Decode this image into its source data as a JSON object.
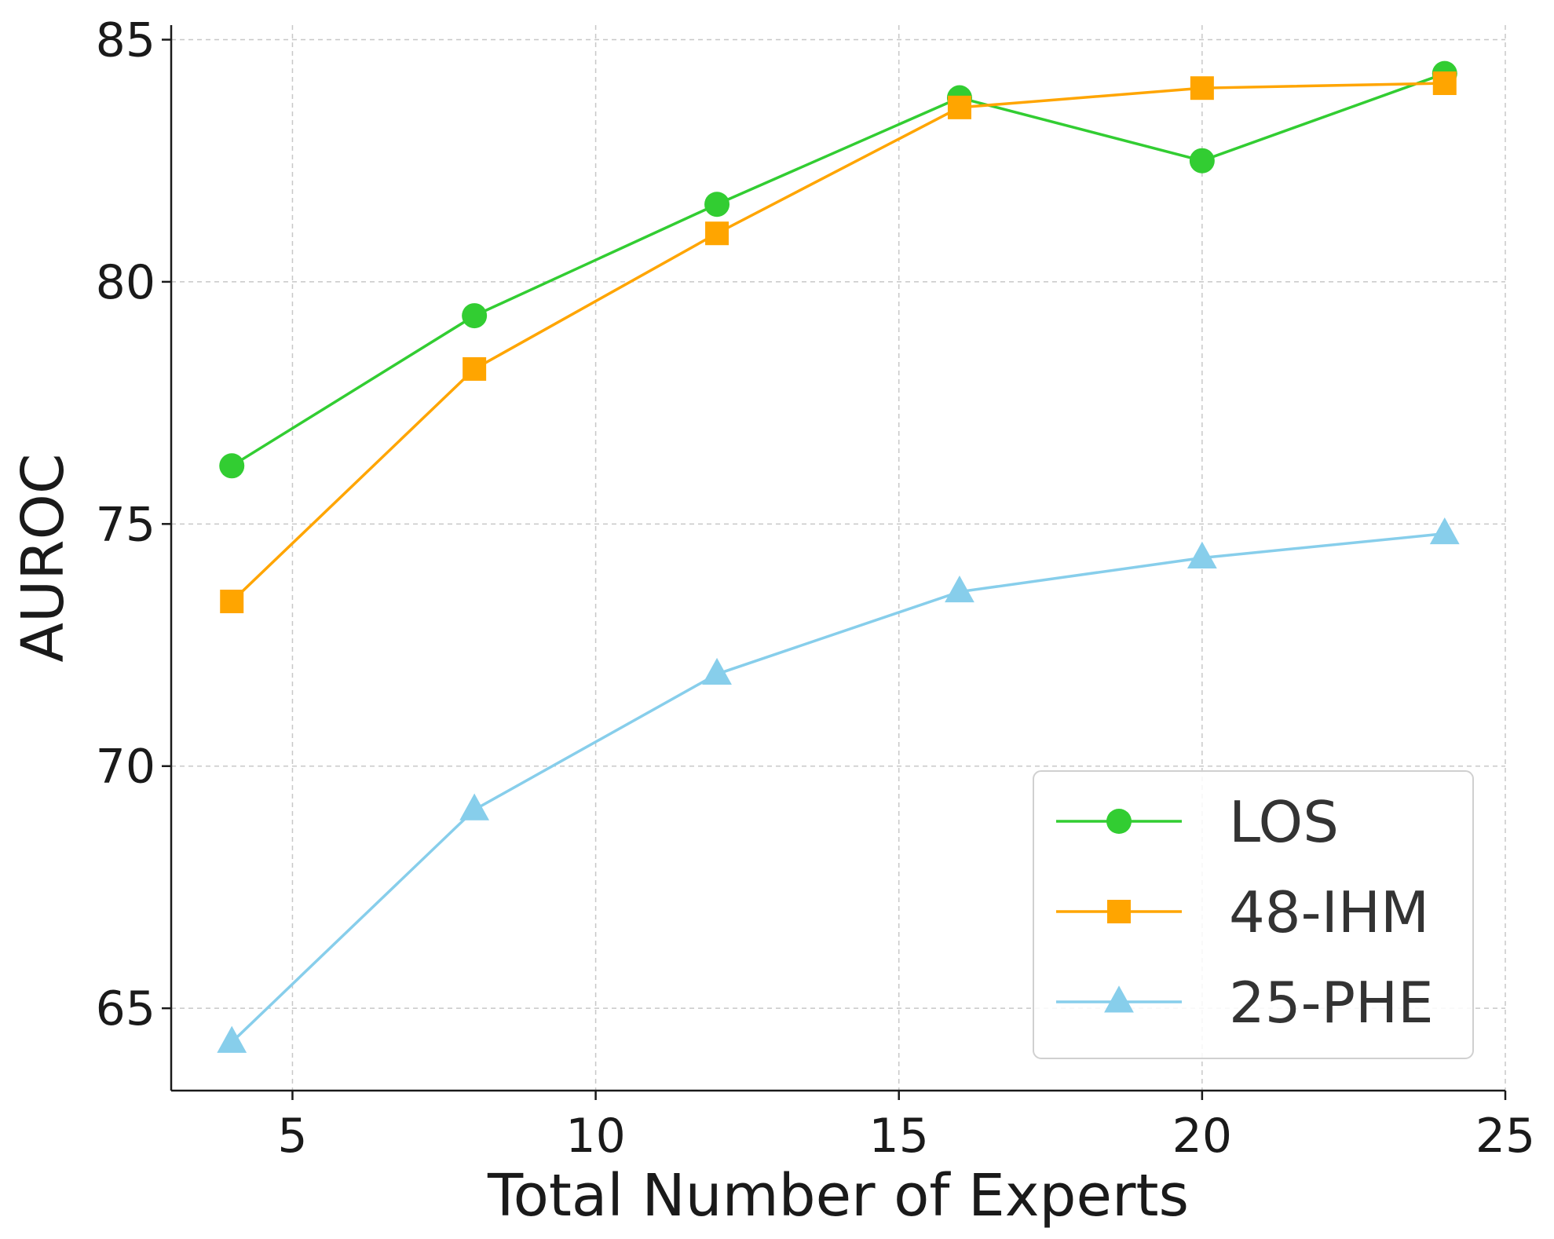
{
  "chart_data": {
    "type": "line",
    "title": "",
    "xlabel": "Total Number of Experts",
    "ylabel": "AUROC",
    "xlim": [
      3,
      25
    ],
    "ylim": [
      63.3,
      85.3
    ],
    "xticks": [
      5,
      10,
      15,
      20,
      25
    ],
    "yticks": [
      65,
      70,
      75,
      80,
      85
    ],
    "grid": true,
    "legend_position": "bottom-right",
    "x": [
      4,
      8,
      12,
      16,
      20,
      24
    ],
    "series": [
      {
        "name": "LOS",
        "color": "#32cd32",
        "marker": "circle",
        "values": [
          76.2,
          79.3,
          81.6,
          83.8,
          82.5,
          84.3
        ]
      },
      {
        "name": "48-IHM",
        "color": "#ffa500",
        "marker": "square",
        "values": [
          73.4,
          78.2,
          81.0,
          83.6,
          84.0,
          84.1
        ]
      },
      {
        "name": "25-PHE",
        "color": "#87ceeb",
        "marker": "triangle",
        "values": [
          64.3,
          69.1,
          71.9,
          73.6,
          74.3,
          74.8
        ]
      }
    ]
  }
}
